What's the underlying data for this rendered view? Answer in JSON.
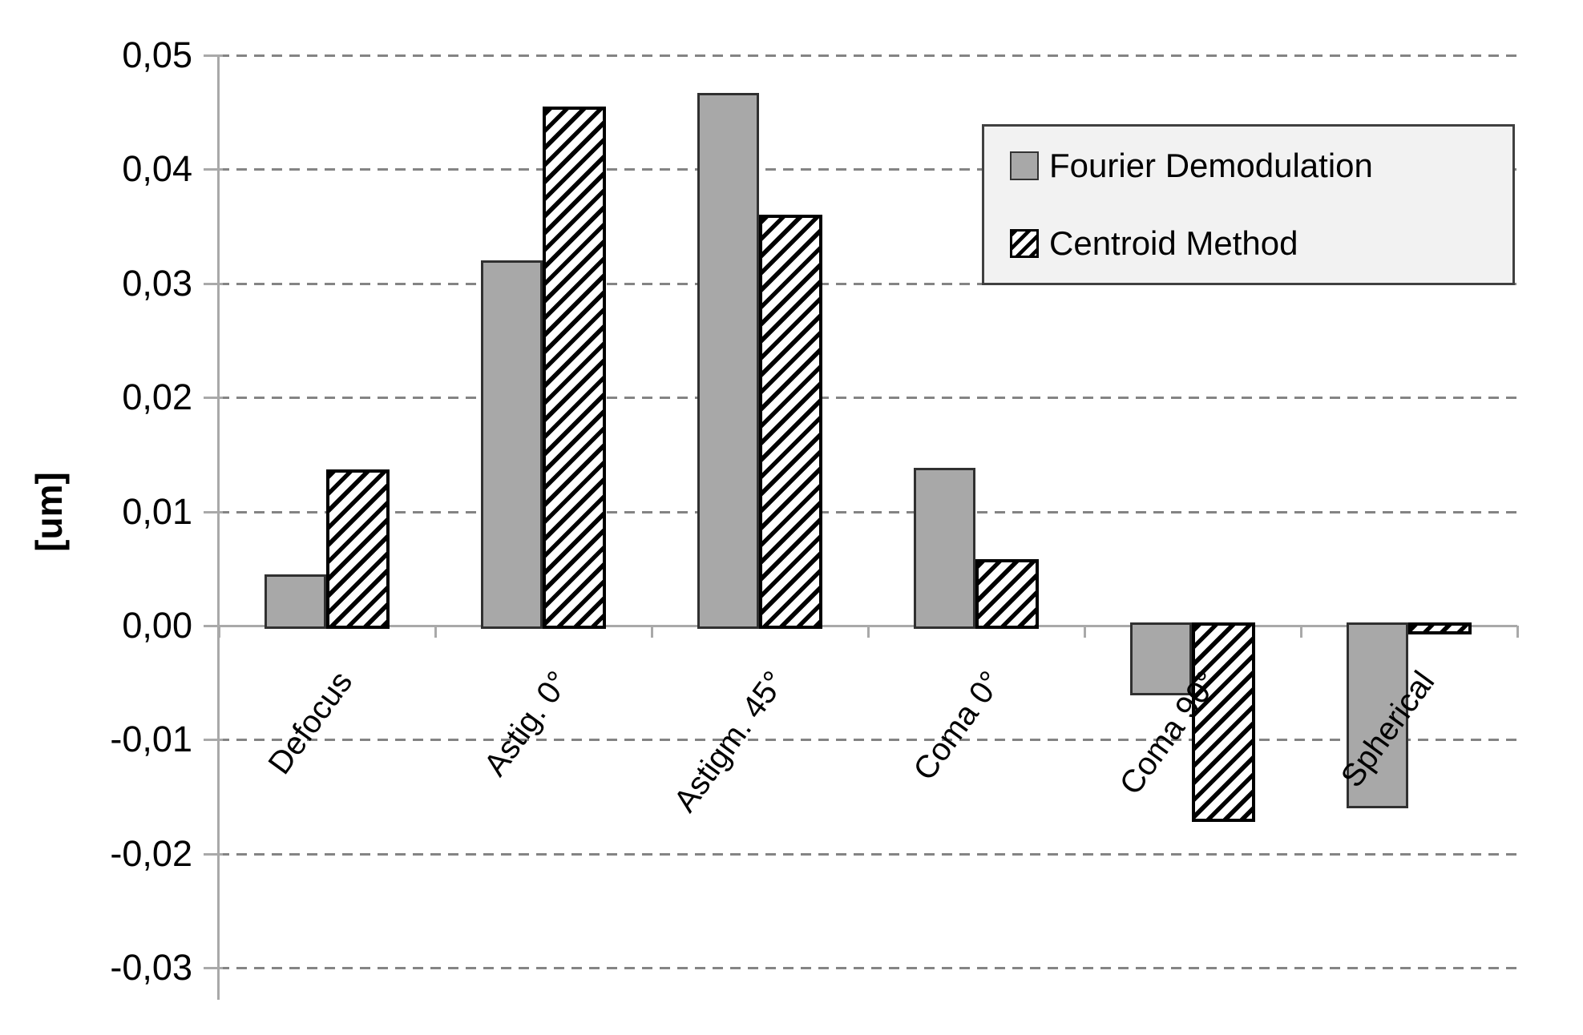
{
  "chart_data": {
    "type": "bar",
    "title": "",
    "categories": [
      "Defocus",
      "Astig. 0°",
      "Astigm. 45°",
      "Coma 0°",
      "Coma 90°",
      "Spherical"
    ],
    "series": [
      {
        "name": "Fourier Demodulation",
        "pattern": "solid-gray",
        "values": [
          0.0045,
          0.032,
          0.0467,
          0.0138,
          -0.0061,
          -0.016
        ]
      },
      {
        "name": "Centroid Method",
        "pattern": "black-diagonal-hatch",
        "values": [
          0.0137,
          0.0455,
          0.036,
          0.0058,
          -0.0172,
          -0.0008
        ]
      }
    ],
    "xlabel": "",
    "ylabel": "[um]",
    "ylim": [
      -0.03,
      0.05
    ],
    "ytick_step": 0.01,
    "ytick_labels": [
      "0,05",
      "0,04",
      "0,03",
      "0,02",
      "0,01",
      "0,00",
      "-0,01",
      "-0,02",
      "-0,03"
    ],
    "decimal_separator": ",",
    "grid": "horizontal-dashed",
    "legend_position": "upper-right"
  },
  "legend": {
    "items": [
      {
        "label": "Fourier Demodulation",
        "swatch": "solid-gray"
      },
      {
        "label": "Centroid Method",
        "swatch": "black-diagonal-hatch"
      }
    ]
  },
  "colors": {
    "bar_gray_fill": "#a8a8a8",
    "bar_gray_border": "#303030",
    "hatch_foreground": "#000000",
    "hatch_background": "#ffffff",
    "gridline": "#848484",
    "axis": "#a9a9a9",
    "legend_background": "#f2f2f2",
    "legend_border": "#404040",
    "text": "#000000",
    "background": "#ffffff"
  }
}
